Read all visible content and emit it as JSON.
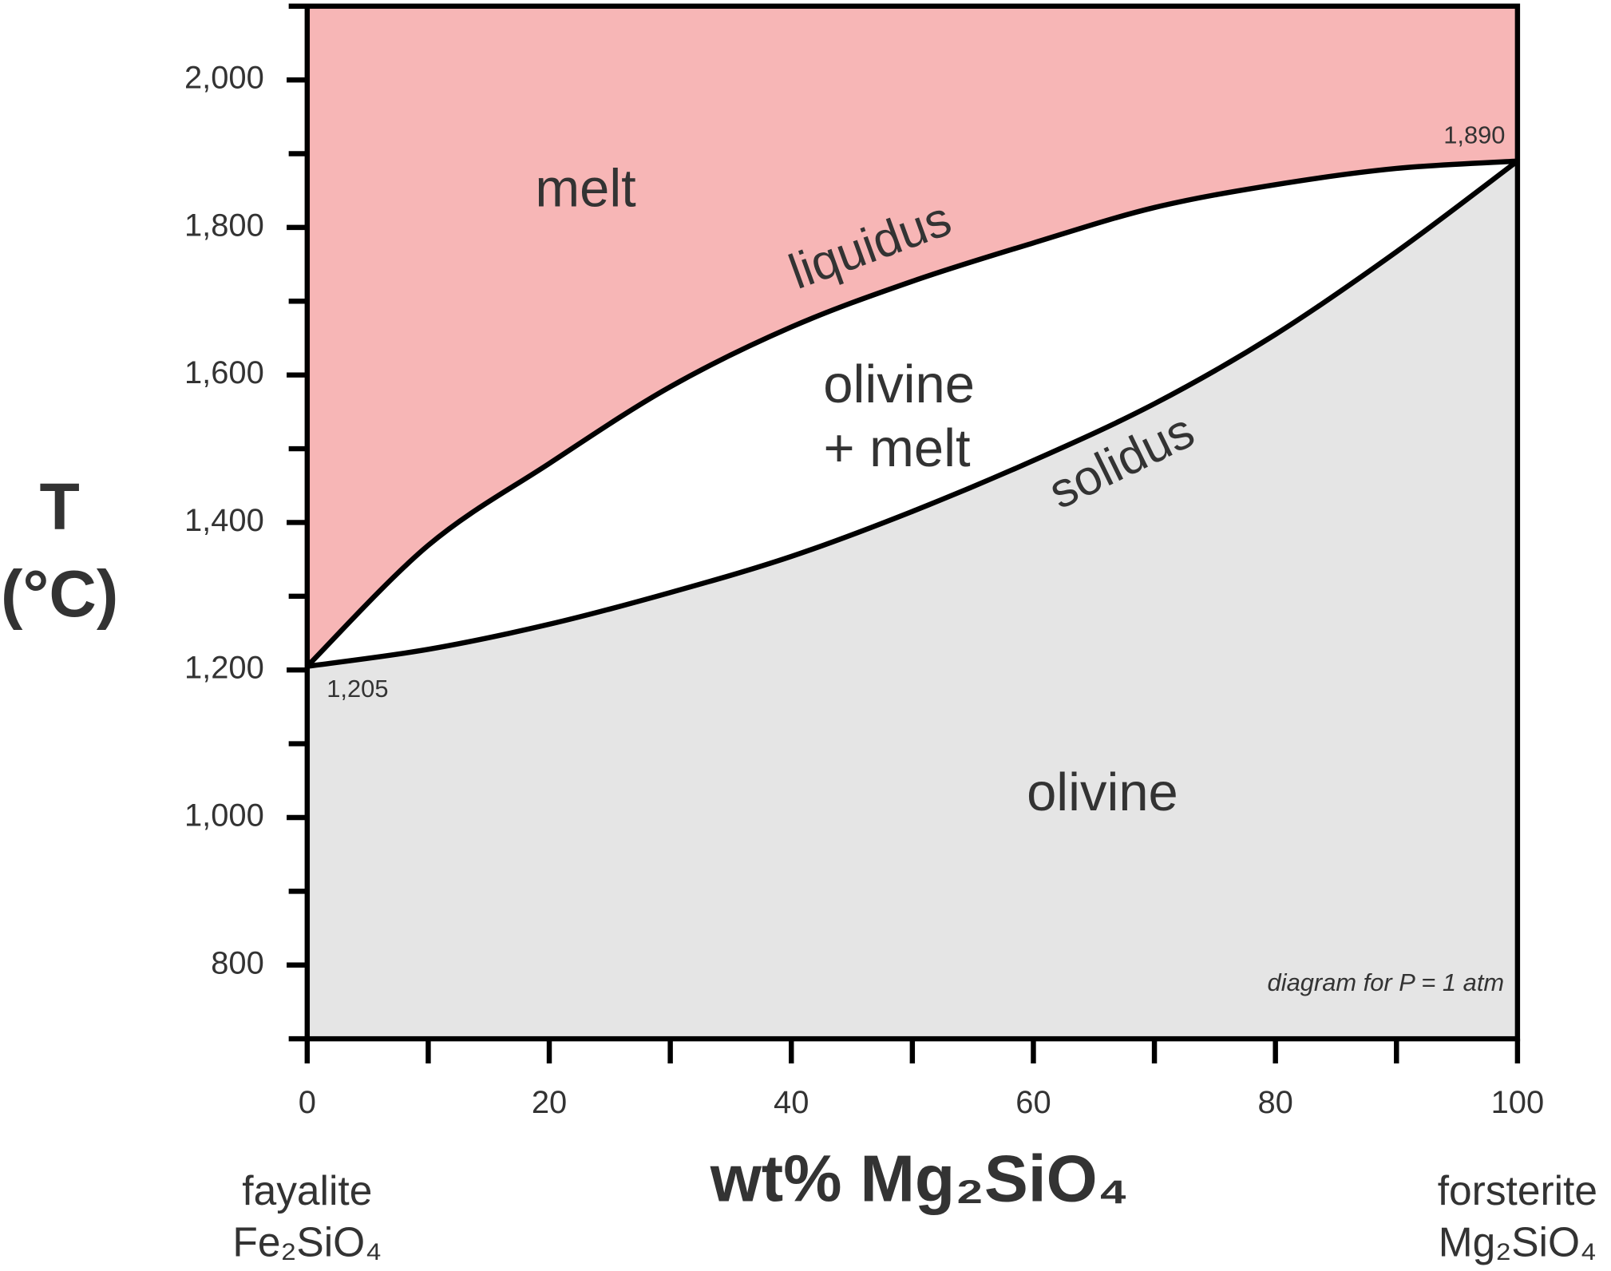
{
  "chart_data": {
    "type": "line",
    "xlabel": "wt% Mg₂SiO₄",
    "ylabel": [
      "T",
      "(°C)"
    ],
    "x": [
      0,
      10,
      20,
      30,
      40,
      50,
      60,
      70,
      80,
      90,
      100
    ],
    "series": [
      {
        "name": "liquidus",
        "color": "#000000",
        "values": [
          1205,
          1369,
          1480,
          1584,
          1665,
          1727,
          1779,
          1827,
          1858,
          1880,
          1890
        ]
      },
      {
        "name": "solidus",
        "color": "#000000",
        "values": [
          1205,
          1228,
          1262,
          1305,
          1354,
          1415,
          1484,
          1561,
          1655,
          1767,
          1890
        ]
      }
    ],
    "regions": [
      {
        "label": [
          "melt"
        ],
        "color": "#f7b6b6"
      },
      {
        "label": [
          "olivine",
          "+ melt"
        ],
        "color": "#ffffff"
      },
      {
        "label": [
          "olivine"
        ],
        "color": "#e5e5e5"
      }
    ],
    "annotations": [
      "1,205",
      "1,890",
      "diagram for P = 1 atm"
    ],
    "endmembers": [
      {
        "name": "fayalite",
        "formula": "Fe₂SiO₄"
      },
      {
        "name": "forsterite",
        "formula": "Mg₂SiO₄"
      }
    ],
    "xlim": [
      0,
      100
    ],
    "ylim": [
      700,
      2100
    ],
    "xticks": [
      0,
      20,
      40,
      60,
      80,
      100
    ],
    "xminorticks": [
      10,
      30,
      50,
      70,
      90
    ],
    "yticks": [
      800,
      {
        "value": 1000,
        "label": "1,000"
      },
      {
        "value": 1200,
        "label": "1,200"
      },
      {
        "value": 1400,
        "label": "1,400"
      },
      {
        "value": 1600,
        "label": "1,600"
      },
      {
        "value": 1800,
        "label": "1,800"
      },
      {
        "value": 2000,
        "label": "2,000"
      }
    ],
    "yminorticks": [
      700,
      900,
      1100,
      1300,
      1500,
      1700,
      1900,
      2100
    ],
    "grid": false
  }
}
